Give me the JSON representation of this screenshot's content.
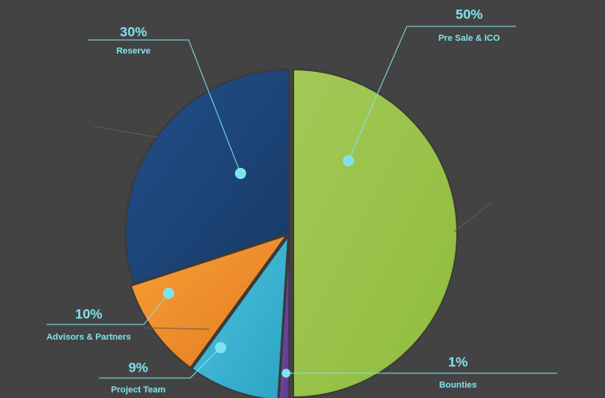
{
  "chart_data": {
    "type": "pie",
    "slices": [
      {
        "label": "Pre Sale & ICO",
        "value": 50,
        "display": "50%",
        "color": "#8fbc3c",
        "colorLight": "#a3c957"
      },
      {
        "label": "Bounties",
        "value": 1,
        "display": "1%",
        "color": "#5b3a8f",
        "colorLight": "#7a52b0"
      },
      {
        "label": "Project Team",
        "value": 9,
        "display": "9%",
        "color": "#2aa3c4",
        "colorLight": "#4ec3de"
      },
      {
        "label": "Advisors & Partners",
        "value": 10,
        "display": "10%",
        "color": "#e47a1f",
        "colorLight": "#f7a036"
      },
      {
        "label": "Reserve",
        "value": 30,
        "display": "30%",
        "color": "#163a66",
        "colorLight": "#23508a"
      }
    ]
  },
  "colors": {
    "background": "#434343",
    "callout": "#7fe3ee",
    "separator": "#3a3a3a"
  }
}
